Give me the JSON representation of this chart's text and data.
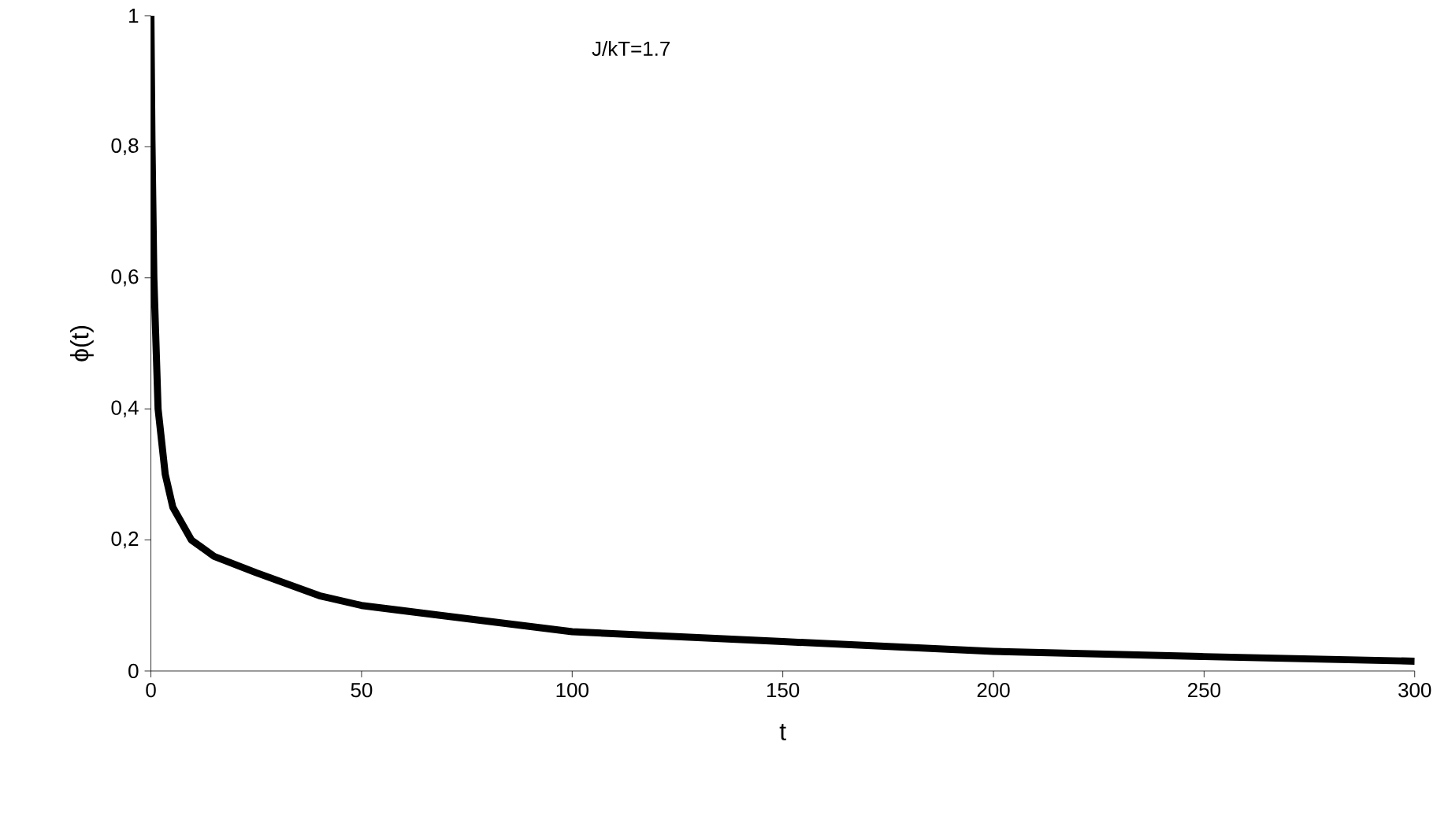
{
  "chart_data": {
    "type": "line",
    "xlabel": "t",
    "ylabel": "ϕ(t)",
    "annotations": [
      "J/kT=1.7"
    ],
    "x": [
      0,
      0.25,
      0.7,
      1.7,
      3.4,
      5.2,
      9.6,
      15,
      25,
      40,
      50,
      68.7,
      100,
      150,
      200,
      250,
      300
    ],
    "series": [
      {
        "color": "#000000",
        "values": [
          1,
          0.81,
          0.6,
          0.4,
          0.3,
          0.25,
          0.2,
          0.175,
          0.15,
          0.115,
          0.1,
          0.085,
          0.06,
          0.045,
          0.03,
          0.022,
          0.015
        ]
      }
    ],
    "xlim": [
      0,
      300
    ],
    "xticks": [
      0,
      50,
      100,
      150,
      200,
      250,
      300
    ],
    "ylim": [
      0,
      1
    ],
    "yticks": [
      0,
      {
        "value": 0.2,
        "label": "0,2"
      },
      {
        "value": 0.4,
        "label": "0,4"
      },
      {
        "value": 0.6,
        "label": "0,6"
      },
      {
        "value": 0.8,
        "label": "0,8"
      },
      1
    ],
    "grid": false,
    "marker": "none",
    "line_style": "solid"
  }
}
